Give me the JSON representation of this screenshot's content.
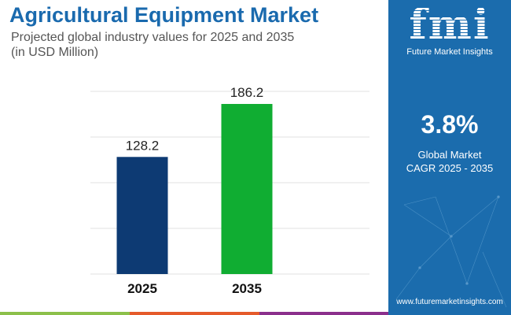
{
  "chart_data": {
    "type": "bar",
    "title": "Agricultural Equipment Market",
    "subtitle": "Projected global industry values for 2025 and 2035",
    "unit_note": "(in USD Million)",
    "categories": [
      "2025",
      "2035"
    ],
    "values": [
      128.2,
      186.2
    ],
    "data_labels": [
      "128.2",
      "186.2"
    ],
    "colors": [
      "#0d3a73",
      "#10ad32"
    ],
    "ylim": [
      0,
      200
    ],
    "grid": true,
    "xlabel": "",
    "ylabel": ""
  },
  "side": {
    "logo_text": "fmi",
    "brand": "Future Market Insights",
    "cagr": "3.8%",
    "cagr_label_1": "Global Market",
    "cagr_label_2": "CAGR 2025 - 2035",
    "url": "www.futuremarketinsights.com"
  },
  "colors": {
    "panel": "#1b6cad",
    "strip": [
      "#8cc04a",
      "#e55a2a",
      "#8b2f8c"
    ]
  }
}
